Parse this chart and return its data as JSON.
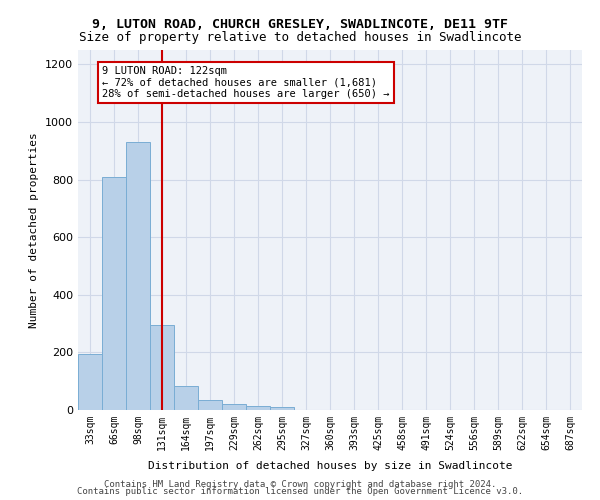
{
  "title_line1": "9, LUTON ROAD, CHURCH GRESLEY, SWADLINCOTE, DE11 9TF",
  "title_line2": "Size of property relative to detached houses in Swadlincote",
  "xlabel": "Distribution of detached houses by size in Swadlincote",
  "ylabel": "Number of detached properties",
  "footnote1": "Contains HM Land Registry data © Crown copyright and database right 2024.",
  "footnote2": "Contains public sector information licensed under the Open Government Licence v3.0.",
  "annotation_title": "9 LUTON ROAD: 122sqm",
  "annotation_line2": "← 72% of detached houses are smaller (1,681)",
  "annotation_line3": "28% of semi-detached houses are larger (650) →",
  "bar_color": "#b8d0e8",
  "bar_edge_color": "#7aadd4",
  "grid_color": "#d0d8e8",
  "bg_color": "#eef2f8",
  "vline_color": "#cc0000",
  "vline_position": 3,
  "categories": [
    "33sqm",
    "66sqm",
    "98sqm",
    "131sqm",
    "164sqm",
    "197sqm",
    "229sqm",
    "262sqm",
    "295sqm",
    "327sqm",
    "360sqm",
    "393sqm",
    "425sqm",
    "458sqm",
    "491sqm",
    "524sqm",
    "556sqm",
    "589sqm",
    "622sqm",
    "654sqm",
    "687sqm"
  ],
  "values": [
    195,
    810,
    930,
    295,
    85,
    35,
    20,
    15,
    10,
    0,
    0,
    0,
    0,
    0,
    0,
    0,
    0,
    0,
    0,
    0,
    0
  ],
  "ylim": [
    0,
    1250
  ],
  "yticks": [
    0,
    200,
    400,
    600,
    800,
    1000,
    1200
  ],
  "annotation_box_color": "#ffffff",
  "annotation_box_edge": "#cc0000"
}
